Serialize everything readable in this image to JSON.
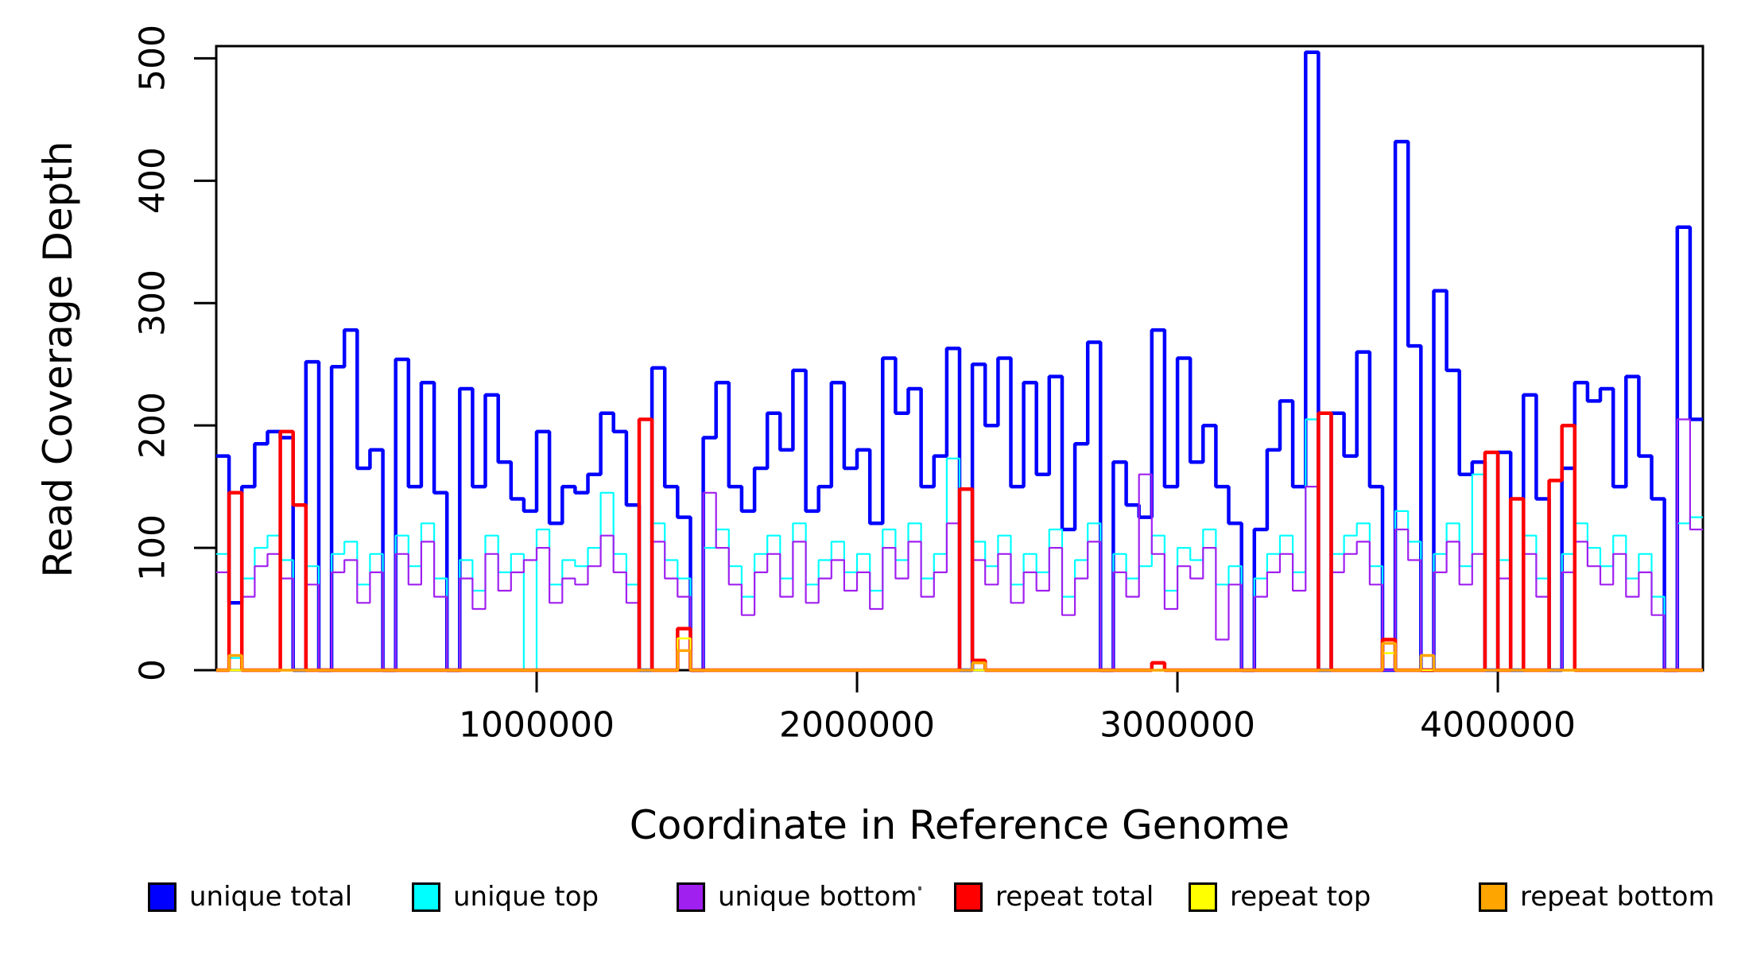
{
  "figure": {
    "background": "#FFFFFF",
    "axis_color": "#000000"
  },
  "chart_data": {
    "type": "line",
    "style": "step",
    "title": "",
    "xlabel": "Coordinate in Reference Genome",
    "ylabel": "Read Coverage Depth",
    "xlim": [
      0,
      4640000
    ],
    "ylim": [
      0,
      510
    ],
    "xticks": [
      1000000,
      2000000,
      3000000,
      4000000
    ],
    "yticks": [
      0,
      100,
      200,
      300,
      400,
      500
    ],
    "grid": false,
    "legend_position": "bottom",
    "x_start": 0,
    "x_step": 40000,
    "n_bins": 116,
    "series": [
      {
        "name": "unique total",
        "color": "#0000FF",
        "line_width": 4.5,
        "values": [
          175,
          55,
          150,
          185,
          195,
          190,
          0,
          252,
          0,
          248,
          278,
          165,
          180,
          0,
          254,
          150,
          235,
          145,
          0,
          230,
          150,
          225,
          170,
          140,
          130,
          195,
          120,
          150,
          145,
          160,
          210,
          195,
          135,
          0,
          247,
          150,
          125,
          0,
          190,
          235,
          150,
          130,
          165,
          210,
          180,
          245,
          130,
          150,
          235,
          165,
          180,
          120,
          255,
          210,
          230,
          150,
          175,
          263,
          0,
          250,
          200,
          255,
          150,
          235,
          160,
          240,
          115,
          185,
          268,
          0,
          170,
          135,
          125,
          278,
          150,
          255,
          170,
          200,
          150,
          120,
          0,
          115,
          180,
          220,
          150,
          505,
          0,
          210,
          175,
          260,
          150,
          0,
          432,
          265,
          0,
          310,
          245,
          160,
          170,
          0,
          178,
          0,
          225,
          140,
          0,
          165,
          235,
          220,
          230,
          150,
          240,
          175,
          140,
          0,
          362,
          205
        ]
      },
      {
        "name": "unique top",
        "color": "#00FFFF",
        "line_width": 2.2,
        "values": [
          95,
          10,
          75,
          100,
          110,
          90,
          0,
          85,
          0,
          95,
          105,
          70,
          95,
          0,
          110,
          85,
          120,
          75,
          0,
          90,
          65,
          110,
          80,
          95,
          0,
          115,
          70,
          90,
          85,
          100,
          145,
          95,
          70,
          0,
          120,
          90,
          75,
          0,
          100,
          115,
          85,
          60,
          95,
          110,
          75,
          120,
          70,
          90,
          105,
          80,
          95,
          65,
          115,
          90,
          120,
          75,
          95,
          173,
          0,
          105,
          85,
          110,
          70,
          95,
          80,
          115,
          60,
          90,
          120,
          0,
          95,
          75,
          85,
          110,
          65,
          100,
          90,
          115,
          70,
          85,
          0,
          75,
          95,
          110,
          80,
          205,
          0,
          95,
          110,
          120,
          85,
          0,
          130,
          105,
          0,
          95,
          120,
          85,
          160,
          0,
          90,
          0,
          110,
          75,
          0,
          95,
          120,
          100,
          85,
          110,
          75,
          95,
          60,
          0,
          120,
          125
        ]
      },
      {
        "name": "unique bottom",
        "color": "#A020F0",
        "line_width": 2.2,
        "values": [
          80,
          12,
          60,
          85,
          95,
          75,
          0,
          70,
          0,
          80,
          90,
          55,
          80,
          0,
          95,
          70,
          105,
          60,
          0,
          75,
          50,
          95,
          65,
          80,
          90,
          100,
          55,
          75,
          70,
          85,
          110,
          80,
          55,
          0,
          105,
          75,
          60,
          0,
          145,
          100,
          70,
          45,
          80,
          95,
          60,
          105,
          55,
          75,
          90,
          65,
          80,
          50,
          100,
          75,
          105,
          60,
          80,
          120,
          0,
          90,
          70,
          95,
          55,
          80,
          65,
          100,
          45,
          75,
          105,
          0,
          80,
          60,
          160,
          95,
          50,
          85,
          75,
          100,
          25,
          70,
          0,
          60,
          80,
          95,
          65,
          150,
          0,
          80,
          95,
          105,
          70,
          0,
          115,
          90,
          0,
          80,
          105,
          70,
          95,
          0,
          75,
          0,
          95,
          60,
          0,
          80,
          105,
          85,
          70,
          95,
          60,
          80,
          45,
          0,
          205,
          115
        ]
      },
      {
        "name": "repeat total",
        "color": "#FF0000",
        "line_width": 4.5,
        "base_value": 0,
        "spikes": {
          "1": 145,
          "5": 195,
          "6": 135,
          "33": 205,
          "36": 34,
          "58": 148,
          "59": 8,
          "73": 6,
          "86": 210,
          "91": 25,
          "99": 178,
          "101": 140,
          "104": 155,
          "105": 200
        }
      },
      {
        "name": "repeat top",
        "color": "#FFFF00",
        "line_width": 2.5,
        "base_value": 0,
        "spikes": {
          "36": 26,
          "91": 14
        }
      },
      {
        "name": "repeat bottom",
        "color": "#FFA500",
        "line_width": 3.5,
        "base_value": 0,
        "spikes": {
          "1": 12,
          "36": 16,
          "59": 6,
          "91": 22,
          "94": 12
        }
      }
    ]
  }
}
